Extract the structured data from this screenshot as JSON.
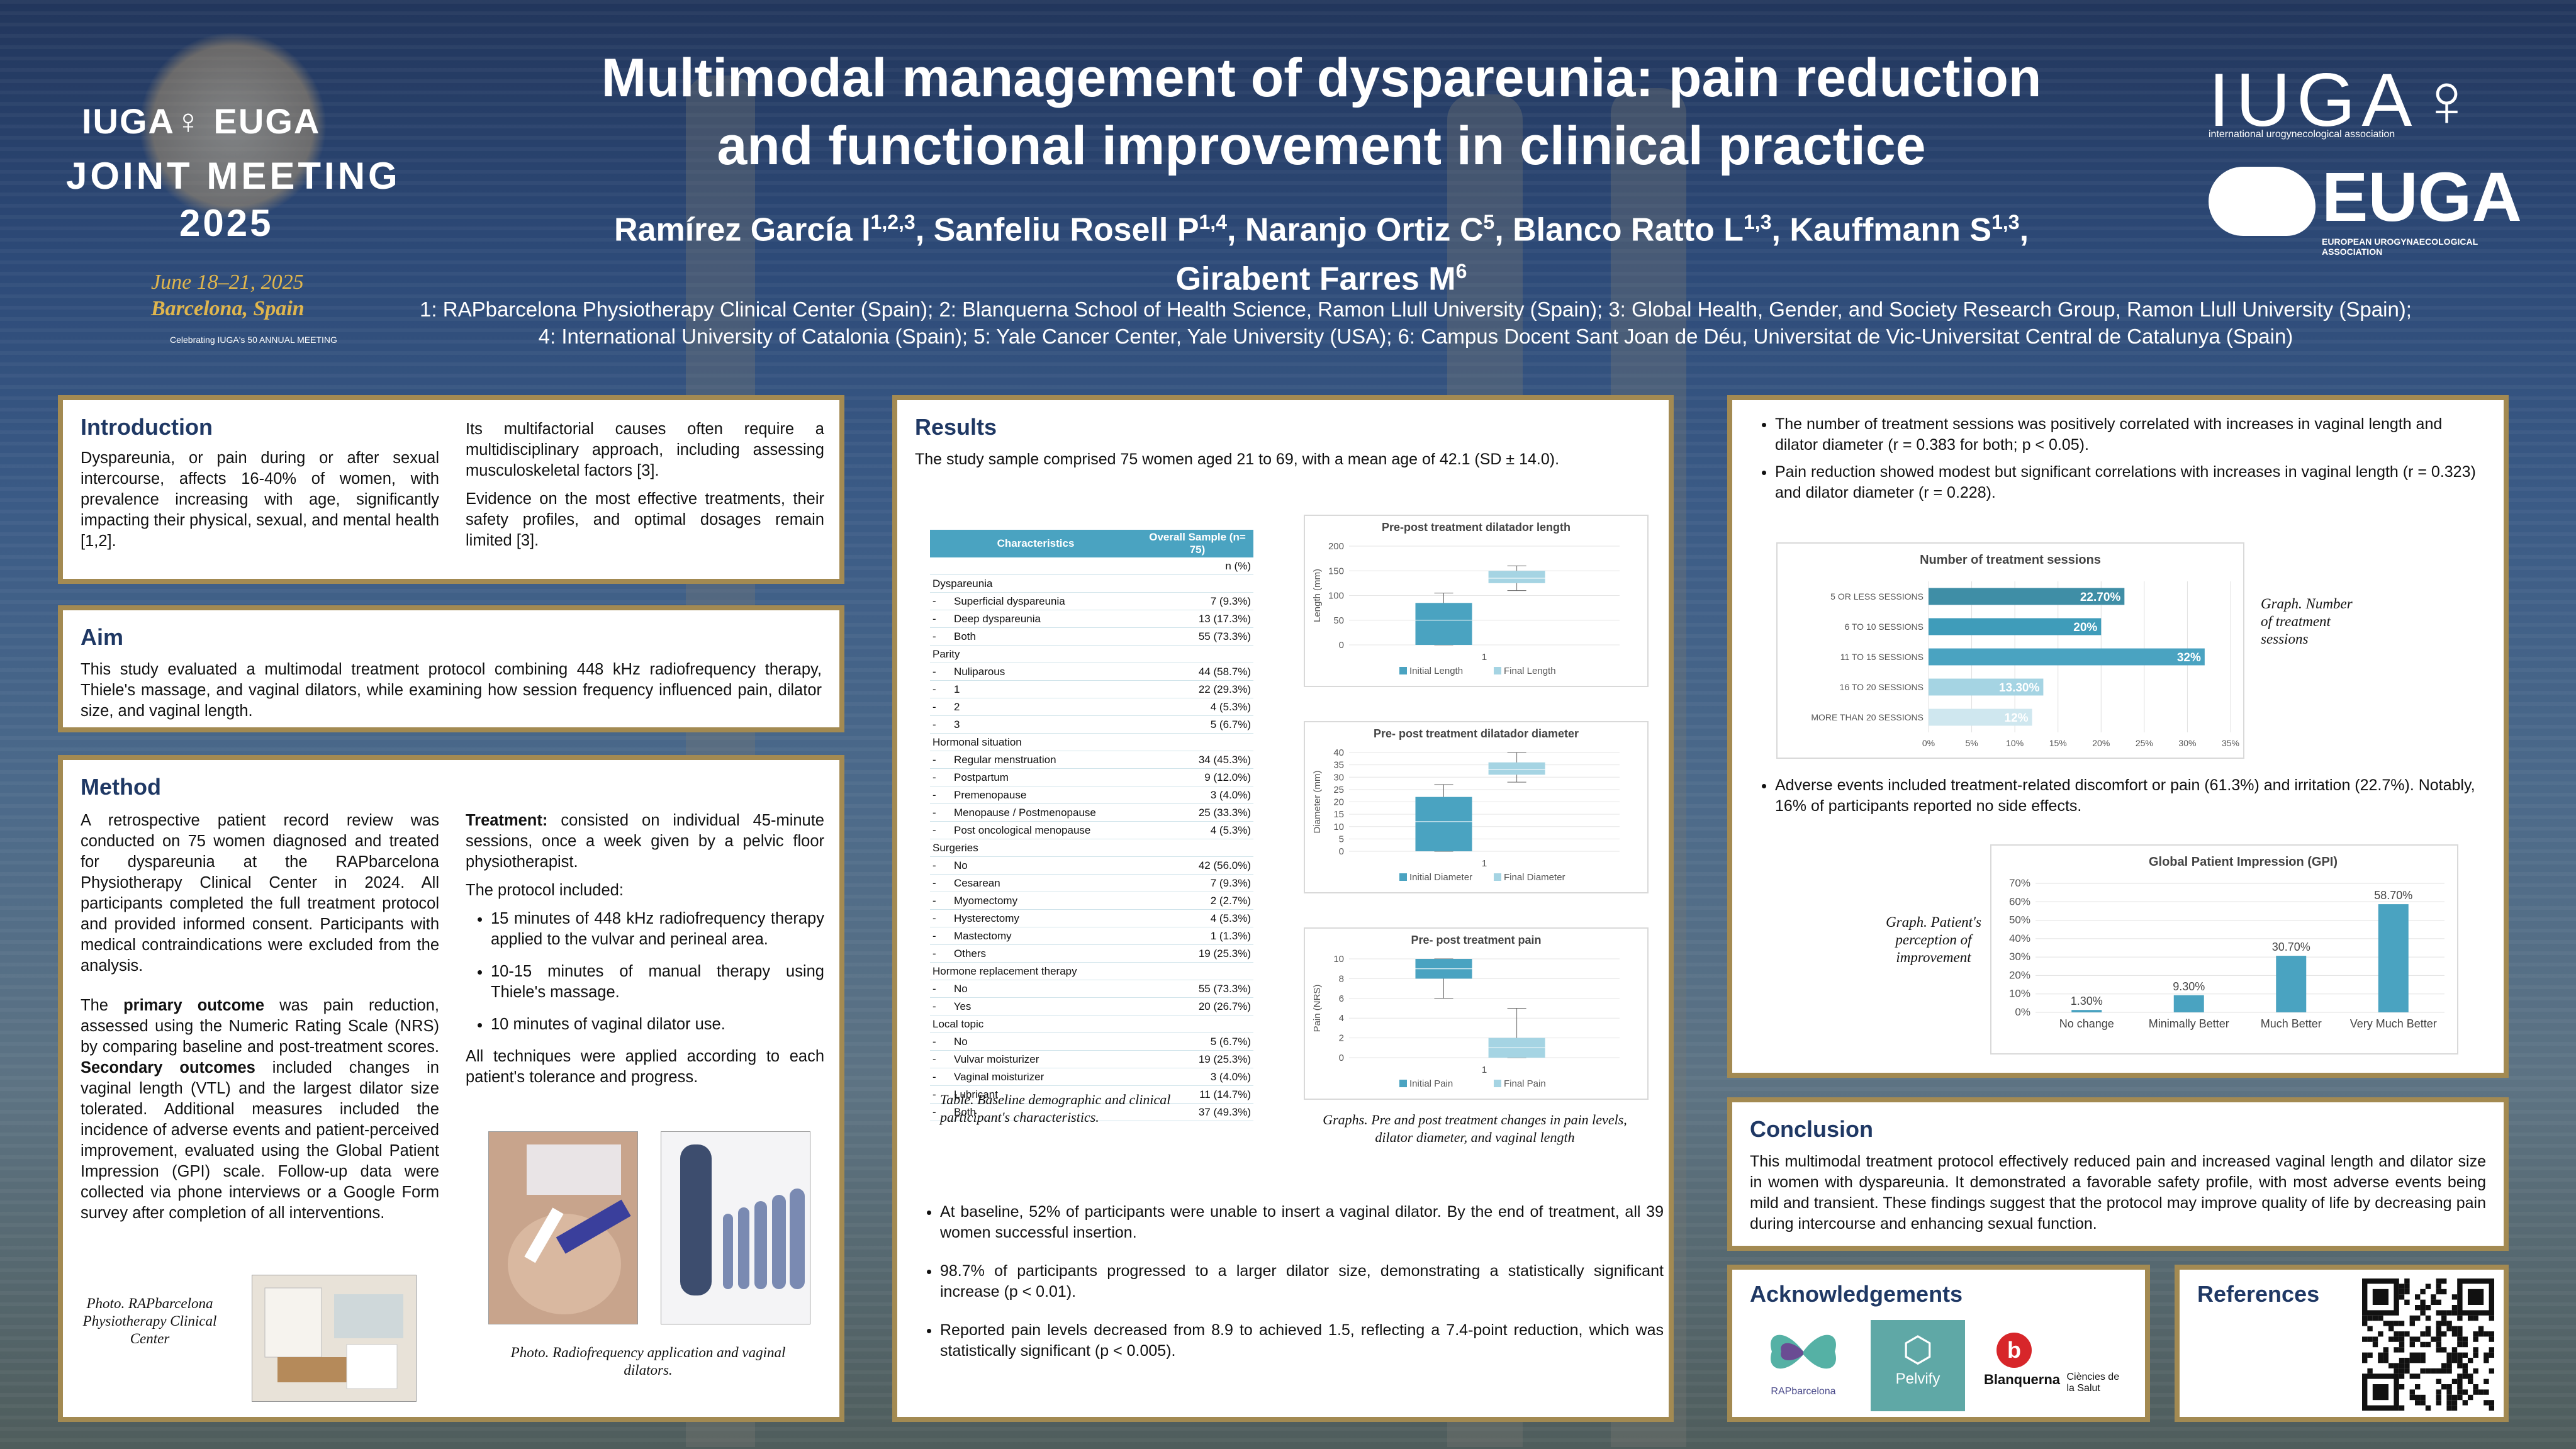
{
  "header": {
    "title_line1": "Multimodal management of dyspareunia: pain reduction",
    "title_line2": "and functional improvement in clinical practice",
    "authors_line1": [
      {
        "name": "Ramírez García I",
        "sup": "1,2,3"
      },
      {
        "name": "Sanfeliu Rosell P",
        "sup": "1,4"
      },
      {
        "name": "Naranjo Ortiz C",
        "sup": "5"
      },
      {
        "name": "Blanco Ratto L",
        "sup": "1,3"
      },
      {
        "name": "Kauffmann S",
        "sup": "1,3"
      }
    ],
    "authors_line2": {
      "name": "Girabent Farres M",
      "sup": "6"
    },
    "affiliations_line1": "1: RAPbarcelona Physiotherapy Clinical Center (Spain); 2: Blanquerna School of Health Science, Ramon Llull University (Spain); 3: Global Health, Gender, and Society Research Group, Ramon Llull University (Spain);",
    "affiliations_line2": "4: International University of Catalonia (Spain); 5: Yale Cancer Center, Yale University (USA); 6: Campus Docent Sant Joan de Déu, Universitat de Vic-Universitat Central de Catalunya (Spain)"
  },
  "logo_left": {
    "line1": "IUGA♀ EUGA",
    "line2": "JOINT MEETING",
    "line3": "2025",
    "line4": "June 18–21, 2025",
    "line5": "Barcelona, Spain",
    "line6": "Celebrating IUGA's 50 ANNUAL MEETING"
  },
  "logo_right": {
    "iuga": "IUGA♀",
    "iuga_sub": "international urogynecological association",
    "euga": "EUGA",
    "euga_sub": "EUROPEAN UROGYNAECOLOGICAL ASSOCIATION"
  },
  "introduction": {
    "title": "Introduction",
    "p1": "Dyspareunia, or pain during or after sexual intercourse, affects 16-40% of women, with prevalence increasing with age, significantly impacting their physical, sexual, and mental health [1,2].",
    "p2": "Its multifactorial causes often require a multidisciplinary approach, including assessing musculoskeletal factors [3].",
    "p3": "Evidence on the most effective treatments, their safety profiles, and optimal dosages remain limited [3]."
  },
  "aim": {
    "title": "Aim",
    "text": "This study evaluated a multimodal treatment protocol combining 448 kHz radiofrequency therapy, Thiele's massage, and vaginal dilators, while examining how session frequency influenced pain, dilator size, and vaginal length."
  },
  "method": {
    "title": "Method",
    "p1": "A retrospective patient record review was conducted on 75 women diagnosed and treated for dyspareunia at the RAPbarcelona Physiotherapy Clinical Center in 2024. All participants completed the full treatment protocol and provided informed consent. Participants with medical contraindications were excluded from the analysis.",
    "p2_a": "The ",
    "p2_b": "primary outcome",
    "p2_c": " was pain reduction, assessed using the Numeric Rating Scale (NRS) by comparing baseline and post-treatment scores. ",
    "p2_d": "Secondary outcomes",
    "p2_e": " included changes in vaginal length (VTL) and the largest dilator size tolerated. Additional measures included the incidence of adverse events and patient-perceived improvement, evaluated using the Global Patient Impression (GPI) scale. Follow-up data were collected via phone interviews or a Google Form survey after completion of all interventions.",
    "treat_label": "Treatment:",
    "treat_text": " consisted on individual 45-minute sessions, once a week given by a pelvic floor physiotherapist.",
    "protocol_intro": "The protocol included:",
    "protocol": [
      "15 minutes of 448 kHz radiofrequency therapy applied to the vulvar and perineal area.",
      "10-15 minutes of manual therapy using Thiele's massage.",
      "10 minutes of vaginal dilator use."
    ],
    "tolerance": "All techniques were applied according to each patient's tolerance and progress.",
    "photo1_caption": "Photo. RAPbarcelona Physiotherapy Clinical Center",
    "photo2_caption": "Photo. Radiofrequency application and vaginal dilators."
  },
  "results": {
    "title": "Results",
    "intro": "The study sample comprised 75 women aged 21 to 69, with a mean age of 42.1 (SD ± 14.0).",
    "table": {
      "col1": "Characteristics",
      "col2": "Overall Sample (n= 75)",
      "col2_sub": "n (%)",
      "groups": [
        {
          "name": "Dyspareunia",
          "rows": [
            [
              "Superficial dyspareunia",
              "7 (9.3%)"
            ],
            [
              "Deep dyspareunia",
              "13 (17.3%)"
            ],
            [
              "Both",
              "55 (73.3%)"
            ]
          ]
        },
        {
          "name": "Parity",
          "rows": [
            [
              "Nuliparous",
              "44 (58.7%)"
            ],
            [
              "1",
              "22 (29.3%)"
            ],
            [
              "2",
              "4 (5.3%)"
            ],
            [
              "3",
              "5 (6.7%)"
            ]
          ]
        },
        {
          "name": "Hormonal situation",
          "rows": [
            [
              "Regular menstruation",
              "34 (45.3%)"
            ],
            [
              "Postpartum",
              "9 (12.0%)"
            ],
            [
              "Premenopause",
              "3 (4.0%)"
            ],
            [
              "Menopause / Postmenopause",
              "25 (33.3%)"
            ],
            [
              "Post oncological menopause",
              "4 (5.3%)"
            ]
          ]
        },
        {
          "name": "Surgeries",
          "rows": [
            [
              "No",
              "42 (56.0%)"
            ],
            [
              "Cesarean",
              "7 (9.3%)"
            ],
            [
              "Myomectomy",
              "2 (2.7%)"
            ],
            [
              "Hysterectomy",
              "4 (5.3%)"
            ],
            [
              "Mastectomy",
              "1 (1.3%)"
            ],
            [
              "Others",
              "19 (25.3%)"
            ]
          ]
        },
        {
          "name": "Hormone replacement therapy",
          "rows": [
            [
              "No",
              "55 (73.3%)"
            ],
            [
              "Yes",
              "20 (26.7%)"
            ]
          ]
        },
        {
          "name": "Local topic",
          "rows": [
            [
              "No",
              "5 (6.7%)"
            ],
            [
              "Vulvar moisturizer",
              "19 (25.3%)"
            ],
            [
              "Vaginal moisturizer",
              "3 (4.0%)"
            ],
            [
              "Lubricant",
              "11 (14.7%)"
            ],
            [
              "Both",
              "37 (49.3%)"
            ]
          ]
        }
      ]
    },
    "table_caption": "Table. Baseline demographic and clinical participant's characteristics.",
    "graphs_caption": "Graphs. Pre and post treatment changes in pain levels, dilator diameter, and vaginal length",
    "bullets": [
      "At baseline, 52% of participants were unable to insert a vaginal dilator. By the end of treatment, all 39 women successful insertion.",
      "98.7% of participants progressed to a larger dilator size, demonstrating a statistically significant increase (p < 0.01).",
      "Reported pain levels decreased from 8.9 to achieved 1.5, reflecting a 7.4-point reduction, which was statistically significant (p < 0.005)."
    ]
  },
  "right_panel": {
    "bullets": [
      "The number of treatment sessions was positively correlated with increases in vaginal length and dilator diameter (r = 0.383 for both; p < 0.05).",
      "Pain reduction showed modest but significant correlations with increases in vaginal length (r = 0.323) and dilator diameter (r = 0.228)."
    ],
    "sessions_caption": "Graph. Number of treatment sessions",
    "adverse": "Adverse events included treatment-related discomfort or pain (61.3%) and irritation (22.7%). Notably, 16% of participants reported no side effects.",
    "gpi_caption": "Graph. Patient's perception of improvement"
  },
  "conclusion": {
    "title": "Conclusion",
    "text": "This multimodal treatment protocol effectively reduced pain and increased vaginal length and dilator size in women with dyspareunia. It demonstrated a favorable safety profile, with most adverse events being mild and transient. These findings suggest that the protocol may improve quality of life by decreasing pain during intercourse and enhancing sexual function."
  },
  "acknowledgements": {
    "title": "Acknowledgements",
    "logo1": "RAPbarcelona",
    "logo2": "Pelvify",
    "logo3": "Blanquerna",
    "logo3_sub": "Ciències de la Salut"
  },
  "references": {
    "title": "References"
  },
  "colors": {
    "panel_border": "#a38a52",
    "title_blue": "#1f3864",
    "bar_teal": "#4aa3c1",
    "light_teal": "#a5d4e3"
  },
  "chart_data": [
    {
      "type": "box",
      "title": "Pre-post treatment dilatador length",
      "ylabel": "Length (mm)",
      "ylim": [
        0,
        200
      ],
      "yticks": [
        0,
        50,
        100,
        150,
        200
      ],
      "categories": [
        "1"
      ],
      "series": [
        {
          "name": "Initial Length",
          "min": 0,
          "q1": 0,
          "median": 50,
          "q3": 85,
          "max": 105
        },
        {
          "name": "Final Length",
          "min": 110,
          "q1": 125,
          "median": 135,
          "q3": 150,
          "max": 160
        }
      ]
    },
    {
      "type": "box",
      "title": "Pre- post treatment dilatador diameter",
      "ylabel": "Diameter (mm)",
      "ylim": [
        0,
        40
      ],
      "yticks": [
        0,
        5,
        10,
        15,
        20,
        25,
        30,
        35,
        40
      ],
      "categories": [
        "1"
      ],
      "series": [
        {
          "name": "Initial Diameter",
          "min": 0,
          "q1": 0,
          "median": 12,
          "q3": 22,
          "max": 27
        },
        {
          "name": "Final Diameter",
          "min": 28,
          "q1": 31,
          "median": 33,
          "q3": 36,
          "max": 40
        }
      ]
    },
    {
      "type": "box",
      "title": "Pre- post treatment pain",
      "ylabel": "Pain (NRS)",
      "ylim": [
        0,
        10
      ],
      "yticks": [
        0,
        2,
        4,
        6,
        8,
        10
      ],
      "categories": [
        "1"
      ],
      "series": [
        {
          "name": "Initial Pain",
          "min": 6,
          "q1": 8,
          "median": 9,
          "q3": 10,
          "max": 10
        },
        {
          "name": "Final Pain",
          "min": 0,
          "q1": 0,
          "median": 1,
          "q3": 2,
          "max": 5
        }
      ]
    },
    {
      "type": "bar",
      "orientation": "horizontal",
      "title": "Number of treatment sessions",
      "categories": [
        "5 OR LESS SESSIONS",
        "6 TO 10 SESSIONS",
        "11 TO 15 SESSIONS",
        "16 TO 20 SESSIONS",
        "MORE THAN 20 SESSIONS"
      ],
      "values": [
        22.7,
        20,
        32,
        13.3,
        12
      ],
      "labels": [
        "22.70%",
        "20%",
        "32%",
        "13.30%",
        "12%"
      ],
      "xlim": [
        0,
        35
      ],
      "xticks": [
        "0%",
        "5%",
        "10%",
        "15%",
        "20%",
        "25%",
        "30%",
        "35%"
      ]
    },
    {
      "type": "bar",
      "title": "Global Patient Impression (GPI)",
      "categories": [
        "No change",
        "Minimally Better",
        "Much Better",
        "Very Much Better"
      ],
      "values": [
        1.3,
        9.3,
        30.7,
        58.7
      ],
      "labels": [
        "1.30%",
        "9.30%",
        "30.70%",
        "58.70%"
      ],
      "ylim": [
        0,
        70
      ],
      "yticks": [
        "0%",
        "10%",
        "20%",
        "30%",
        "40%",
        "50%",
        "60%",
        "70%"
      ]
    }
  ]
}
